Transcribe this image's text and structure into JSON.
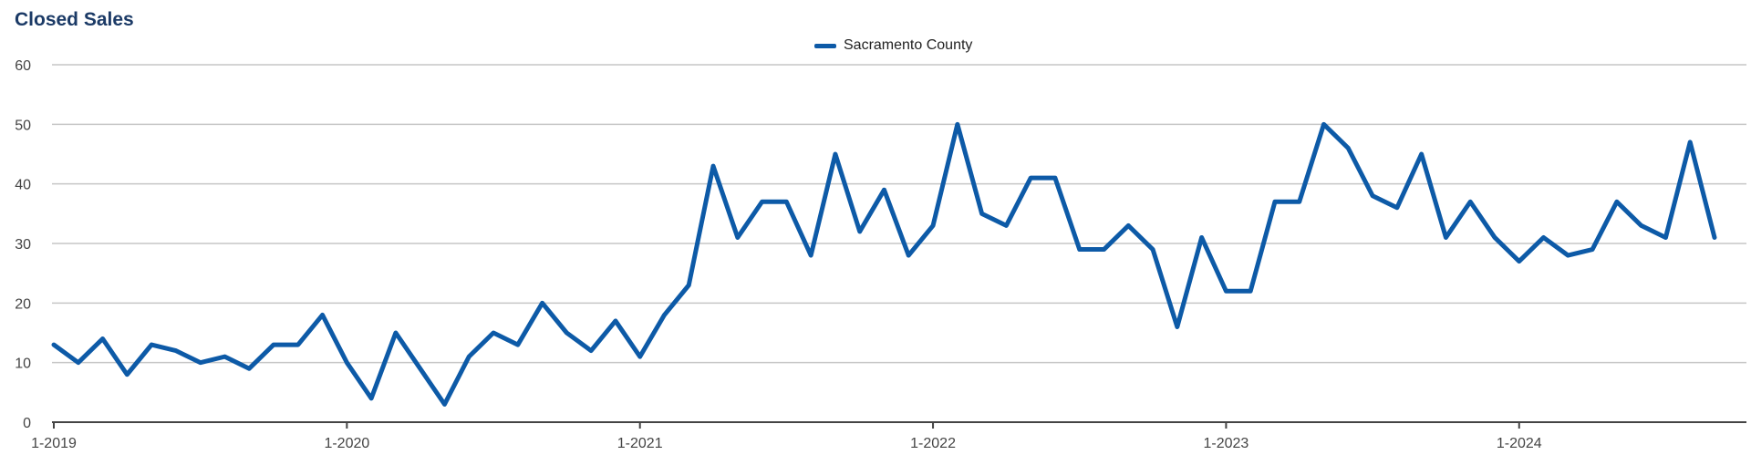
{
  "chart_data": {
    "type": "line",
    "title": "Closed Sales",
    "xlabel": "",
    "ylabel": "",
    "ylim": [
      0,
      60
    ],
    "yticks": [
      0,
      10,
      20,
      30,
      40,
      50,
      60
    ],
    "xticks": [
      "1-2019",
      "1-2020",
      "1-2021",
      "1-2022",
      "1-2023",
      "1-2024"
    ],
    "x_start": "1-2019",
    "x_end": "9-2024",
    "grid": true,
    "legend_position": "top-center",
    "series": [
      {
        "name": "Sacramento County",
        "color": "#0d5aa7",
        "x": [
          "1-2019",
          "2-2019",
          "3-2019",
          "4-2019",
          "5-2019",
          "6-2019",
          "7-2019",
          "8-2019",
          "9-2019",
          "10-2019",
          "11-2019",
          "12-2019",
          "1-2020",
          "2-2020",
          "3-2020",
          "4-2020",
          "5-2020",
          "6-2020",
          "7-2020",
          "8-2020",
          "9-2020",
          "10-2020",
          "11-2020",
          "12-2020",
          "1-2021",
          "2-2021",
          "3-2021",
          "4-2021",
          "5-2021",
          "6-2021",
          "7-2021",
          "8-2021",
          "9-2021",
          "10-2021",
          "11-2021",
          "12-2021",
          "1-2022",
          "2-2022",
          "3-2022",
          "4-2022",
          "5-2022",
          "6-2022",
          "7-2022",
          "8-2022",
          "9-2022",
          "10-2022",
          "11-2022",
          "12-2022",
          "1-2023",
          "2-2023",
          "3-2023",
          "4-2023",
          "5-2023",
          "6-2023",
          "7-2023",
          "8-2023",
          "9-2023",
          "10-2023",
          "11-2023",
          "12-2023",
          "1-2024",
          "2-2024",
          "3-2024",
          "4-2024",
          "5-2024",
          "6-2024",
          "7-2024",
          "8-2024",
          "9-2024"
        ],
        "values": [
          13,
          10,
          14,
          8,
          13,
          12,
          10,
          11,
          9,
          13,
          13,
          18,
          10,
          4,
          15,
          9,
          3,
          11,
          15,
          13,
          20,
          15,
          12,
          17,
          11,
          18,
          23,
          43,
          31,
          37,
          37,
          28,
          45,
          32,
          39,
          28,
          33,
          50,
          35,
          33,
          41,
          41,
          29,
          29,
          33,
          29,
          16,
          31,
          22,
          22,
          37,
          37,
          50,
          46,
          38,
          36,
          45,
          31,
          37,
          31,
          27,
          31,
          28,
          29,
          37,
          33,
          31,
          47,
          31
        ]
      }
    ]
  }
}
